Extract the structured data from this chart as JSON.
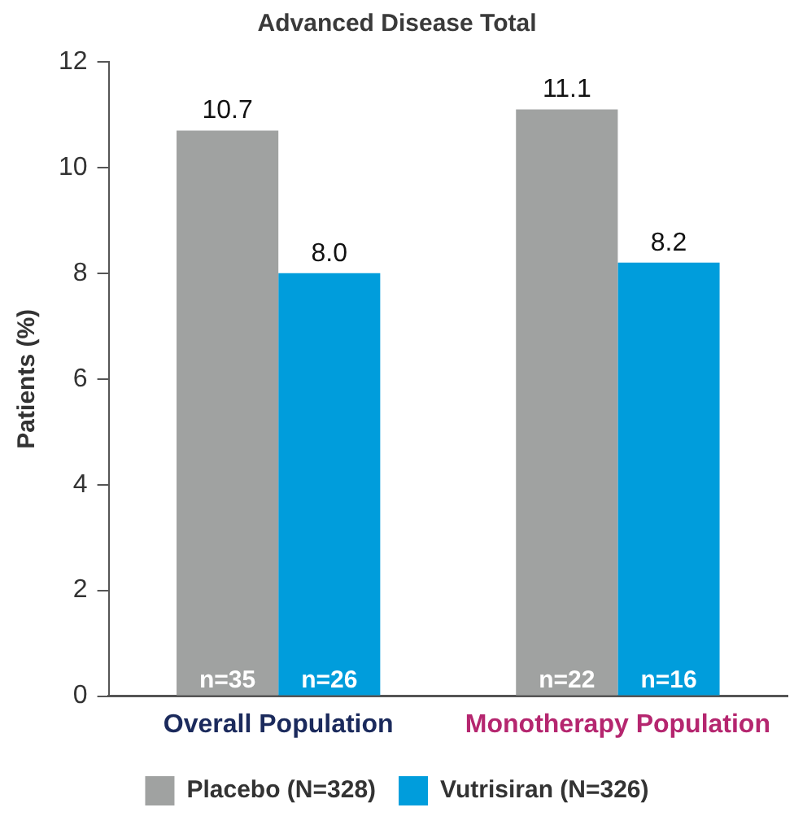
{
  "chart_data": {
    "type": "bar",
    "title": "Advanced Disease Total",
    "ylabel": "Patients (%)",
    "categories": [
      "Overall Population",
      "Monotherapy Population"
    ],
    "series": [
      {
        "name": "Placebo (N=328)",
        "color": "#a0a2a1",
        "values": [
          10.7,
          11.1
        ],
        "value_labels": [
          "10.7",
          "11.1"
        ]
      },
      {
        "name": "Vutrisiran (N=326)",
        "color": "#009ddc",
        "values": [
          8.0,
          8.2
        ],
        "value_labels": [
          "8.0",
          "8.2"
        ]
      }
    ],
    "annotations": [
      "n=35",
      "n=26",
      "n=22",
      "n=16"
    ],
    "ylim": [
      0,
      12
    ],
    "yticks": [
      0,
      2,
      4,
      6,
      8,
      10,
      12
    ],
    "grid": false,
    "legend": "bottom"
  }
}
